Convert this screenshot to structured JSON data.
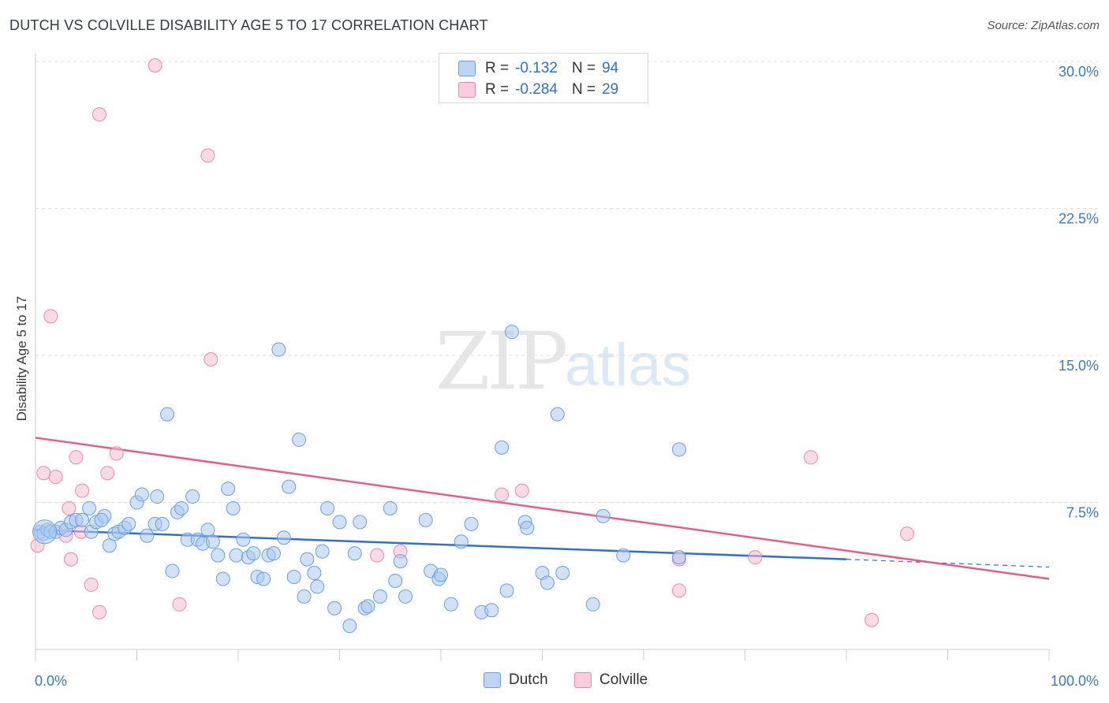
{
  "title": "DUTCH VS COLVILLE DISABILITY AGE 5 TO 17 CORRELATION CHART",
  "source": "Source: ZipAtlas.com",
  "watermark": {
    "zip": "ZIP",
    "atlas": "atlas"
  },
  "colors": {
    "dutch_fill": "#a9c9f2",
    "dutch_stroke": "#6aa0e0",
    "dutch_line": "#2f6fd0",
    "colville_fill": "#f6bcd0",
    "colville_stroke": "#e98aab",
    "colville_line": "#e35e8d",
    "tick_text": "#3b78c7",
    "grid": "#dddddd"
  },
  "legend": {
    "rows": [
      {
        "series": "Dutch",
        "r_label": "R =",
        "r_value": "-0.132",
        "n_label": "N =",
        "n_value": "94"
      },
      {
        "series": "Colville",
        "r_label": "R =",
        "r_value": "-0.284",
        "n_label": "N =",
        "n_value": "29"
      }
    ]
  },
  "chart_data": {
    "type": "scatter",
    "title": "DUTCH VS COLVILLE DISABILITY AGE 5 TO 17 CORRELATION CHART",
    "xlabel": "",
    "ylabel": "Disability Age 5 to 17",
    "xlim": [
      0,
      100
    ],
    "ylim": [
      0,
      30
    ],
    "x_tick_labels": [
      "0.0%",
      "100.0%"
    ],
    "y_ticks": [
      7.5,
      15.0,
      22.5,
      30.0
    ],
    "y_tick_labels": [
      "7.5%",
      "15.0%",
      "22.5%",
      "30.0%"
    ],
    "grid": true,
    "legend_position": "top-center",
    "series": [
      {
        "name": "Dutch",
        "points": [
          [
            0.5,
            6.0
          ],
          [
            0.8,
            5.9
          ],
          [
            1.2,
            6.1
          ],
          [
            1.5,
            6.0
          ],
          [
            2.0,
            6.0
          ],
          [
            2.5,
            6.2
          ],
          [
            3.0,
            6.1
          ],
          [
            3.5,
            6.5
          ],
          [
            4.0,
            6.6
          ],
          [
            4.6,
            6.6
          ],
          [
            5.3,
            7.2
          ],
          [
            5.5,
            6.0
          ],
          [
            6.0,
            6.5
          ],
          [
            6.8,
            6.8
          ],
          [
            7.3,
            5.3
          ],
          [
            7.8,
            5.9
          ],
          [
            8.2,
            6.0
          ],
          [
            8.8,
            6.2
          ],
          [
            9.2,
            6.4
          ],
          [
            10.0,
            7.5
          ],
          [
            10.5,
            7.9
          ],
          [
            11.0,
            5.8
          ],
          [
            11.8,
            6.4
          ],
          [
            12.0,
            7.8
          ],
          [
            12.5,
            6.4
          ],
          [
            13.0,
            12.0
          ],
          [
            13.5,
            4.0
          ],
          [
            14.0,
            7.0
          ],
          [
            14.4,
            7.2
          ],
          [
            15.0,
            5.6
          ],
          [
            15.5,
            7.8
          ],
          [
            16.0,
            5.6
          ],
          [
            16.5,
            5.4
          ],
          [
            17.0,
            6.1
          ],
          [
            17.5,
            5.5
          ],
          [
            18.0,
            4.8
          ],
          [
            18.5,
            3.6
          ],
          [
            19.0,
            8.2
          ],
          [
            19.5,
            7.2
          ],
          [
            19.8,
            4.8
          ],
          [
            20.5,
            5.6
          ],
          [
            21.0,
            4.7
          ],
          [
            21.5,
            4.9
          ],
          [
            21.9,
            3.7
          ],
          [
            22.5,
            3.6
          ],
          [
            23.0,
            4.8
          ],
          [
            23.5,
            4.9
          ],
          [
            24.0,
            15.3
          ],
          [
            24.5,
            5.7
          ],
          [
            25.0,
            8.3
          ],
          [
            25.5,
            3.7
          ],
          [
            26.0,
            10.7
          ],
          [
            26.5,
            2.7
          ],
          [
            26.8,
            4.6
          ],
          [
            27.5,
            3.9
          ],
          [
            27.8,
            3.2
          ],
          [
            28.3,
            5.0
          ],
          [
            28.8,
            7.2
          ],
          [
            29.5,
            2.1
          ],
          [
            30.0,
            6.5
          ],
          [
            31.0,
            1.2
          ],
          [
            31.5,
            4.9
          ],
          [
            32.0,
            6.5
          ],
          [
            32.5,
            2.1
          ],
          [
            32.8,
            2.2
          ],
          [
            34.0,
            2.7
          ],
          [
            35.0,
            7.2
          ],
          [
            35.5,
            3.5
          ],
          [
            36.0,
            4.5
          ],
          [
            36.5,
            2.7
          ],
          [
            38.5,
            6.6
          ],
          [
            39.0,
            4.0
          ],
          [
            39.8,
            3.6
          ],
          [
            40.0,
            3.8
          ],
          [
            41.0,
            2.3
          ],
          [
            42.0,
            5.5
          ],
          [
            43.0,
            6.4
          ],
          [
            44.0,
            1.9
          ],
          [
            45.0,
            2.0
          ],
          [
            46.0,
            10.3
          ],
          [
            46.5,
            3.0
          ],
          [
            47.0,
            16.2
          ],
          [
            48.3,
            6.5
          ],
          [
            48.5,
            6.2
          ],
          [
            50.0,
            3.9
          ],
          [
            50.5,
            3.4
          ],
          [
            51.5,
            12.0
          ],
          [
            52.0,
            3.9
          ],
          [
            55.0,
            2.3
          ],
          [
            56.0,
            6.8
          ],
          [
            58.0,
            4.8
          ],
          [
            63.5,
            4.7
          ],
          [
            63.5,
            10.2
          ],
          [
            6.5,
            6.6
          ]
        ],
        "trend": {
          "x": [
            0,
            80
          ],
          "y": [
            6.1,
            4.6
          ],
          "dashed_extension": {
            "x": [
              80,
              100
            ],
            "y": [
              4.6,
              4.2
            ]
          }
        }
      },
      {
        "name": "Colville",
        "points": [
          [
            0.2,
            5.3
          ],
          [
            0.8,
            9.0
          ],
          [
            1.5,
            17.0
          ],
          [
            2.0,
            8.8
          ],
          [
            3.0,
            5.8
          ],
          [
            3.3,
            7.2
          ],
          [
            3.5,
            4.6
          ],
          [
            4.0,
            9.8
          ],
          [
            4.5,
            6.0
          ],
          [
            5.5,
            3.3
          ],
          [
            4.6,
            8.1
          ],
          [
            6.3,
            27.3
          ],
          [
            6.3,
            1.9
          ],
          [
            7.1,
            9.0
          ],
          [
            8.0,
            10.0
          ],
          [
            11.8,
            29.8
          ],
          [
            14.2,
            2.3
          ],
          [
            17.0,
            25.2
          ],
          [
            17.3,
            14.8
          ],
          [
            33.7,
            4.8
          ],
          [
            36.0,
            5.0
          ],
          [
            46.0,
            7.9
          ],
          [
            48.0,
            8.1
          ],
          [
            63.5,
            3.0
          ],
          [
            63.5,
            4.6
          ],
          [
            71.0,
            4.7
          ],
          [
            76.5,
            9.8
          ],
          [
            86.0,
            5.9
          ],
          [
            82.5,
            1.5
          ]
        ],
        "trend": {
          "x": [
            0,
            100
          ],
          "y": [
            10.8,
            3.6
          ]
        }
      }
    ]
  },
  "bottom_legend": [
    {
      "label": "Dutch"
    },
    {
      "label": "Colville"
    }
  ]
}
